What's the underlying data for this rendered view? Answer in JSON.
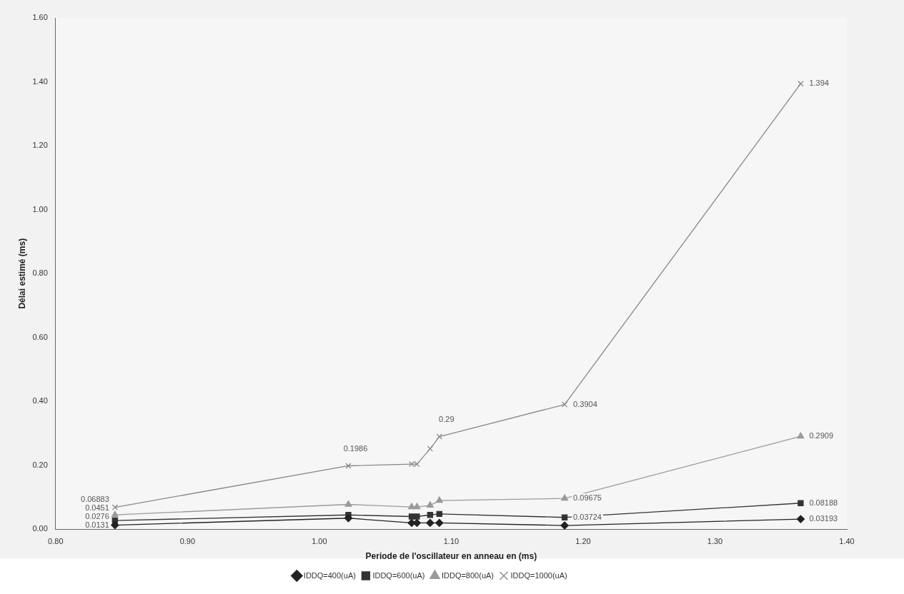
{
  "chart_data": {
    "type": "line",
    "xlabel": "Periode de l'oscillateur en anneau en (ms)",
    "ylabel": "Délai estimé (ms)",
    "xlim": [
      0.8,
      1.4
    ],
    "xticks": [
      {
        "value": 0.8,
        "label": "0.80"
      },
      {
        "value": 0.9,
        "label": "0.90"
      },
      {
        "value": 1.0,
        "label": "1.00"
      },
      {
        "value": 1.1,
        "label": "1.10"
      },
      {
        "value": 1.2,
        "label": "1.20"
      },
      {
        "value": 1.3,
        "label": "1.30"
      },
      {
        "value": 1.4,
        "label": "1.40"
      }
    ],
    "ylim": [
      0,
      1.6
    ],
    "yticks": [
      {
        "value": 0,
        "label": "0.00"
      },
      {
        "value": 0.2,
        "label": "0.20"
      },
      {
        "value": 0.4,
        "label": "0.40"
      },
      {
        "value": 0.6,
        "label": "0.60"
      },
      {
        "value": 0.8,
        "label": "0.80"
      },
      {
        "value": 1.0,
        "label": "1.00"
      },
      {
        "value": 1.2,
        "label": "1.20"
      },
      {
        "value": 1.4,
        "label": "1.40"
      },
      {
        "value": 1.6,
        "label": "1.60"
      }
    ],
    "x": [
      0.845,
      1.022,
      1.07,
      1.074,
      1.084,
      1.091,
      1.186,
      1.365
    ],
    "grid": false,
    "legend": "bottom",
    "series": [
      {
        "name": "IDDQ=400(uA)",
        "color": "#222222",
        "marker": "diamond",
        "values": [
          0.0131,
          0.035,
          0.02,
          0.02,
          0.02,
          0.02,
          0.012,
          0.03193
        ],
        "value_labels": [
          "0.0131",
          null,
          null,
          null,
          null,
          null,
          null,
          "0.03193"
        ]
      },
      {
        "name": "IDDQ=600(uA)",
        "color": "#333333",
        "marker": "square",
        "values": [
          0.0276,
          0.045,
          0.04,
          0.04,
          0.045,
          0.048,
          0.03724,
          0.08188
        ],
        "value_labels": [
          "0.0276",
          null,
          null,
          null,
          null,
          null,
          "0.03724",
          "0.08188"
        ]
      },
      {
        "name": "IDDQ=800(uA)",
        "color": "#9a9a9a",
        "marker": "triangle",
        "values": [
          0.0451,
          0.078,
          0.07,
          0.07,
          0.075,
          0.09,
          0.09675,
          0.2909
        ],
        "value_labels": [
          "0.0451",
          null,
          null,
          null,
          null,
          null,
          "0.09675",
          "0.2909"
        ]
      },
      {
        "name": "IDDQ=1000(uA)",
        "color": "#888888",
        "marker": "cross",
        "values": [
          0.06883,
          0.1986,
          0.204,
          0.204,
          0.252,
          0.29,
          0.3904,
          1.394
        ],
        "value_labels": [
          "0.06883",
          "0.1986",
          null,
          null,
          null,
          "0.29",
          "0.3904",
          "1.394"
        ]
      }
    ]
  }
}
